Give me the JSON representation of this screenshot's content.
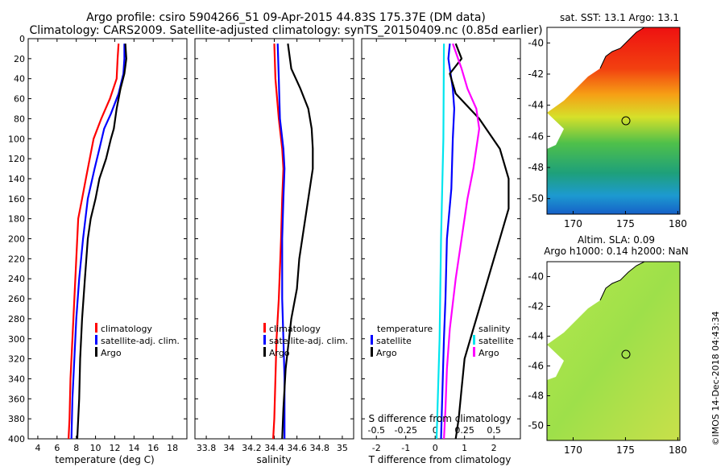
{
  "title": {
    "line1": "Argo profile: csiro 5904266_51 09-Apr-2015 44.83S 175.37E (DM data)",
    "line2": "Climatology: CARS2009. Satellite-adjusted climatology: synTS_20150409.nc (0.85d earlier)"
  },
  "colors": {
    "argo": "#000000",
    "climatology": "#ff0000",
    "satellite": "#0000ff",
    "t_diff": "#00e5ee",
    "s_diff": "#ff00ff"
  },
  "chart_data": [
    {
      "type": "line",
      "name": "temperature",
      "xlabel": "temperature (deg C)",
      "ylabel": "",
      "xlim": [
        3,
        19.5
      ],
      "ylim": [
        400,
        0
      ],
      "xticks": [
        "4",
        "6",
        "8",
        "10",
        "12",
        "14",
        "16",
        "18"
      ],
      "xtick_values": [
        4,
        6,
        8,
        10,
        12,
        14,
        16,
        18
      ],
      "yticks": [
        "0",
        "20",
        "40",
        "60",
        "80",
        "100",
        "120",
        "140",
        "160",
        "180",
        "200",
        "220",
        "240",
        "260",
        "280",
        "300",
        "320",
        "340",
        "360",
        "380",
        "400"
      ],
      "ytick_values": [
        0,
        20,
        40,
        60,
        80,
        100,
        120,
        140,
        160,
        180,
        200,
        220,
        240,
        260,
        280,
        300,
        320,
        340,
        360,
        380,
        400
      ],
      "legend": [
        "climatology",
        "satellite-adj. clim.",
        "Argo"
      ],
      "series": [
        {
          "name": "climatology",
          "color": "#ff0000",
          "points": [
            [
              12.4,
              5
            ],
            [
              12.3,
              20
            ],
            [
              12.2,
              40
            ],
            [
              11.5,
              60
            ],
            [
              10.6,
              80
            ],
            [
              9.8,
              100
            ],
            [
              9.4,
              120
            ],
            [
              9.0,
              140
            ],
            [
              8.6,
              160
            ],
            [
              8.2,
              180
            ],
            [
              8.0,
              220
            ],
            [
              7.8,
              260
            ],
            [
              7.6,
              300
            ],
            [
              7.4,
              340
            ],
            [
              7.3,
              380
            ],
            [
              7.2,
              400
            ]
          ]
        },
        {
          "name": "satellite",
          "color": "#0000ff",
          "points": [
            [
              13.0,
              5
            ],
            [
              13.0,
              20
            ],
            [
              12.9,
              35
            ],
            [
              12.4,
              55
            ],
            [
              11.6,
              75
            ],
            [
              10.9,
              90
            ],
            [
              10.4,
              110
            ],
            [
              9.9,
              130
            ],
            [
              9.2,
              160
            ],
            [
              8.7,
              200
            ],
            [
              8.3,
              240
            ],
            [
              8.0,
              280
            ],
            [
              7.8,
              320
            ],
            [
              7.6,
              360
            ],
            [
              7.5,
              400
            ]
          ]
        },
        {
          "name": "Argo",
          "color": "#000000",
          "points": [
            [
              13.1,
              5
            ],
            [
              13.2,
              20
            ],
            [
              13.0,
              35
            ],
            [
              12.6,
              50
            ],
            [
              12.2,
              70
            ],
            [
              11.9,
              90
            ],
            [
              11.6,
              100
            ],
            [
              11.1,
              120
            ],
            [
              10.4,
              140
            ],
            [
              10.0,
              160
            ],
            [
              9.5,
              180
            ],
            [
              9.2,
              200
            ],
            [
              8.9,
              240
            ],
            [
              8.6,
              280
            ],
            [
              8.4,
              320
            ],
            [
              8.3,
              360
            ],
            [
              8.1,
              400
            ]
          ]
        }
      ]
    },
    {
      "type": "line",
      "name": "salinity",
      "xlabel": "salinity",
      "xlim": [
        33.7,
        35.1
      ],
      "ylim": [
        400,
        0
      ],
      "xticks": [
        "33.8",
        "34",
        "34.2",
        "34.4",
        "34.6",
        "34.8",
        "35"
      ],
      "xtick_values": [
        33.8,
        34,
        34.2,
        34.4,
        34.6,
        34.8,
        35
      ],
      "legend": [
        "climatology",
        "satellite-adj. clim.",
        "Argo"
      ],
      "series": [
        {
          "name": "climatology",
          "color": "#ff0000",
          "points": [
            [
              34.4,
              5
            ],
            [
              34.41,
              40
            ],
            [
              34.44,
              80
            ],
            [
              34.47,
              110
            ],
            [
              34.48,
              130
            ],
            [
              34.47,
              160
            ],
            [
              34.46,
              200
            ],
            [
              34.44,
              260
            ],
            [
              34.42,
              300
            ],
            [
              34.41,
              340
            ],
            [
              34.4,
              380
            ],
            [
              34.39,
              400
            ]
          ]
        },
        {
          "name": "satellite",
          "color": "#0000ff",
          "points": [
            [
              34.43,
              5
            ],
            [
              34.44,
              40
            ],
            [
              34.45,
              80
            ],
            [
              34.48,
              110
            ],
            [
              34.49,
              130
            ],
            [
              34.48,
              160
            ],
            [
              34.47,
              200
            ],
            [
              34.47,
              260
            ],
            [
              34.48,
              300
            ],
            [
              34.49,
              340
            ],
            [
              34.49,
              380
            ],
            [
              34.49,
              400
            ]
          ]
        },
        {
          "name": "Argo",
          "color": "#000000",
          "points": [
            [
              34.52,
              5
            ],
            [
              34.55,
              30
            ],
            [
              34.63,
              50
            ],
            [
              34.7,
              70
            ],
            [
              34.73,
              90
            ],
            [
              34.74,
              110
            ],
            [
              34.74,
              130
            ],
            [
              34.7,
              160
            ],
            [
              34.66,
              190
            ],
            [
              34.62,
              220
            ],
            [
              34.6,
              250
            ],
            [
              34.55,
              280
            ],
            [
              34.53,
              300
            ],
            [
              34.5,
              330
            ],
            [
              34.48,
              370
            ],
            [
              34.47,
              400
            ]
          ]
        }
      ]
    },
    {
      "type": "line",
      "name": "difference",
      "xlabel": "T difference from climatology",
      "xlim": [
        -2.5,
        2.9
      ],
      "ylim": [
        400,
        0
      ],
      "xticks": [
        "-2",
        "-1",
        "0",
        "1",
        "2"
      ],
      "xtick_values": [
        -2,
        -1,
        0,
        1,
        2
      ],
      "secondary_axis": {
        "label": "S difference from climatology",
        "ticks": [
          "-0.5",
          "-0.25",
          "0",
          "0.25",
          "0.5"
        ],
        "tick_values": [
          -0.5,
          -0.25,
          0,
          0.25,
          0.5
        ],
        "scale": 4
      },
      "legend": {
        "temperature_header": "temperature",
        "salinity_header": "salinity",
        "entries": [
          "satellite",
          "Argo"
        ]
      },
      "series": [
        {
          "name": "T satellite",
          "color": "#0000ff",
          "points": [
            [
              0.5,
              5
            ],
            [
              0.45,
              20
            ],
            [
              0.6,
              50
            ],
            [
              0.65,
              70
            ],
            [
              0.6,
              100
            ],
            [
              0.55,
              150
            ],
            [
              0.4,
              200
            ],
            [
              0.35,
              260
            ],
            [
              0.3,
              300
            ],
            [
              0.25,
              350
            ],
            [
              0.2,
              400
            ]
          ]
        },
        {
          "name": "T Argo",
          "color": "#000000",
          "points": [
            [
              0.7,
              5
            ],
            [
              0.9,
              20
            ],
            [
              0.5,
              35
            ],
            [
              0.7,
              55
            ],
            [
              1.5,
              80
            ],
            [
              2.2,
              110
            ],
            [
              2.5,
              140
            ],
            [
              2.5,
              170
            ],
            [
              2.2,
              200
            ],
            [
              1.9,
              230
            ],
            [
              1.6,
              260
            ],
            [
              1.3,
              290
            ],
            [
              1.0,
              320
            ],
            [
              0.9,
              350
            ],
            [
              0.8,
              380
            ],
            [
              0.7,
              400
            ]
          ]
        },
        {
          "name": "S satellite",
          "color": "#00e5ee",
          "points": [
            [
              0.3,
              5
            ],
            [
              0.28,
              100
            ],
            [
              0.2,
              200
            ],
            [
              0.15,
              300
            ],
            [
              0.05,
              400
            ]
          ]
        },
        {
          "name": "S Argo",
          "color": "#ff00ff",
          "points": [
            [
              0.6,
              5
            ],
            [
              0.9,
              30
            ],
            [
              1.1,
              50
            ],
            [
              1.4,
              70
            ],
            [
              1.5,
              90
            ],
            [
              1.3,
              130
            ],
            [
              1.1,
              160
            ],
            [
              0.9,
              200
            ],
            [
              0.7,
              240
            ],
            [
              0.5,
              290
            ],
            [
              0.4,
              330
            ],
            [
              0.35,
              370
            ],
            [
              0.3,
              400
            ]
          ]
        }
      ]
    },
    {
      "type": "heatmap",
      "name": "sst-map",
      "title": "sat. SST: 13.1 Argo: 13.1",
      "xticks": [
        "170",
        "175",
        "180"
      ],
      "xtick_values": [
        170,
        175,
        180
      ],
      "yticks": [
        "-40",
        "-42",
        "-44",
        "-46",
        "-48",
        "-50"
      ],
      "ytick_values": [
        -40,
        -42,
        -44,
        -46,
        -48,
        -50
      ],
      "xlim": [
        167.5,
        180.2
      ],
      "ylim": [
        -51,
        -39
      ]
    },
    {
      "type": "heatmap",
      "name": "sla-map",
      "title_line1": "Altim. SLA: 0.09",
      "title_line2": "Argo h1000: 0.14 h2000: NaN",
      "xticks": [
        "170",
        "175",
        "180"
      ],
      "xtick_values": [
        170,
        175,
        180
      ],
      "yticks": [
        "-40",
        "-42",
        "-44",
        "-46",
        "-48",
        "-50"
      ],
      "ytick_values": [
        -40,
        -42,
        -44,
        -46,
        -48,
        -50
      ],
      "xlim": [
        167.5,
        180.2
      ],
      "ylim": [
        -51,
        -39
      ]
    }
  ],
  "watermark": "©IMOS 14-Dec-2018 04:43:34"
}
